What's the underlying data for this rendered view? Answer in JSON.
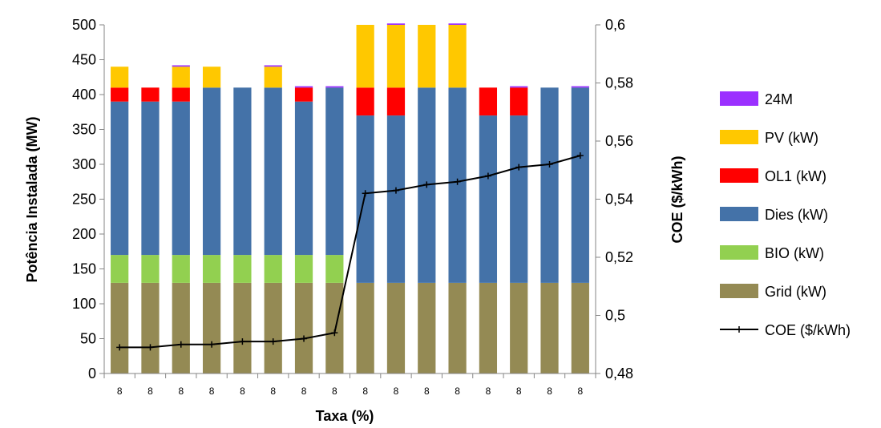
{
  "chart_data": {
    "type": "bar",
    "categories": [
      "8",
      "8",
      "8",
      "8",
      "8",
      "8",
      "8",
      "8",
      "8",
      "8",
      "8",
      "8",
      "8",
      "8",
      "8",
      "8"
    ],
    "xlabel": "Taxa (%)",
    "ylabel": "Potência Instalada (MW)",
    "y2label": "COE ($/kWh)",
    "ylim": [
      0,
      500
    ],
    "y2lim": [
      0.48,
      0.6
    ],
    "yticks": [
      "0",
      "50",
      "100",
      "150",
      "200",
      "250",
      "300",
      "350",
      "400",
      "450",
      "500"
    ],
    "y2ticks": [
      "0,48",
      "0,5",
      "0,52",
      "0,54",
      "0,56",
      "0,58",
      "0,6"
    ],
    "grid": false,
    "legend_position": "right",
    "stacked": true,
    "series": [
      {
        "name": "Grid (kW)",
        "color": "#948A54",
        "values": [
          130,
          130,
          130,
          130,
          130,
          130,
          130,
          130,
          130,
          130,
          130,
          130,
          130,
          130,
          130,
          130
        ]
      },
      {
        "name": "BIO (kW)",
        "color": "#92D050",
        "values": [
          40,
          40,
          40,
          40,
          40,
          40,
          40,
          40,
          0,
          0,
          0,
          0,
          0,
          0,
          0,
          0
        ]
      },
      {
        "name": "Dies (kW)",
        "color": "#4472A8",
        "values": [
          220,
          220,
          220,
          240,
          240,
          240,
          220,
          240,
          240,
          240,
          280,
          280,
          240,
          240,
          280,
          280
        ]
      },
      {
        "name": "OL1 (kW)",
        "color": "#FF0000",
        "values": [
          20,
          20,
          20,
          0,
          0,
          0,
          20,
          0,
          40,
          40,
          0,
          0,
          40,
          40,
          0,
          0
        ]
      },
      {
        "name": "PV (kW)",
        "color": "#FFC800",
        "values": [
          30,
          0,
          30,
          30,
          0,
          30,
          0,
          0,
          90,
          90,
          90,
          90,
          0,
          0,
          0,
          0
        ]
      },
      {
        "name": "24M",
        "color": "#9B30FF",
        "values": [
          0,
          0,
          2,
          0,
          0,
          2,
          2,
          2,
          0,
          2,
          0,
          2,
          0,
          2,
          0,
          2
        ]
      }
    ],
    "line_series": {
      "name": "COE ($/kWh)",
      "color": "#000000",
      "axis": "secondary",
      "values": [
        0.489,
        0.489,
        0.49,
        0.49,
        0.491,
        0.491,
        0.492,
        0.494,
        0.542,
        0.543,
        0.545,
        0.546,
        0.548,
        0.551,
        0.552,
        0.555
      ]
    }
  }
}
